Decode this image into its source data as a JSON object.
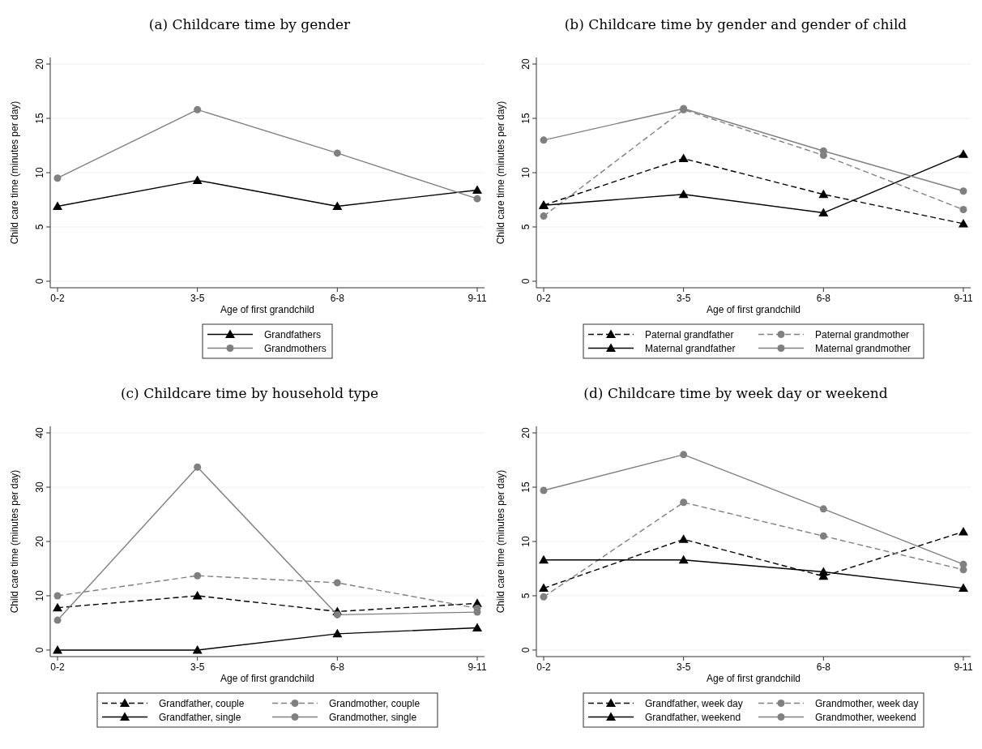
{
  "chart_data": [
    {
      "type": "line",
      "title": "(a) Childcare time by gender",
      "xlabel": "Age of first grandchild",
      "ylabel": "Child care time (minutes per day)",
      "categories": [
        "0-2",
        "3-5",
        "6-8",
        "9-11"
      ],
      "ylim": [
        -0.6,
        20.6
      ],
      "yticks": [
        0,
        5,
        10,
        15,
        20
      ],
      "grid": "y",
      "legend": "bottom",
      "series": [
        {
          "name": "Grandfathers",
          "color": "#000000",
          "marker": "triangle",
          "line_style": "solid",
          "values": [
            6.9,
            9.3,
            6.9,
            8.4
          ]
        },
        {
          "name": "Grandmothers",
          "color": "#808080",
          "marker": "circle",
          "line_style": "solid",
          "values": [
            9.5,
            15.8,
            11.8,
            7.6
          ]
        }
      ]
    },
    {
      "type": "line",
      "title": "(b) Childcare time by gender and gender of child",
      "xlabel": "Age of first grandchild",
      "ylabel": "Child care time (minutes per day)",
      "categories": [
        "0-2",
        "3-5",
        "6-8",
        "9-11"
      ],
      "ylim": [
        -0.6,
        20.6
      ],
      "yticks": [
        0,
        5,
        10,
        15,
        20
      ],
      "grid": "y",
      "legend": "bottom",
      "series": [
        {
          "name": "Paternal grandfather",
          "color": "#000000",
          "marker": "triangle",
          "line_style": "dashed",
          "values": [
            7.0,
            11.3,
            8.0,
            5.3
          ]
        },
        {
          "name": "Paternal grandmother",
          "color": "#808080",
          "marker": "circle",
          "line_style": "dashed",
          "values": [
            6.0,
            15.8,
            11.6,
            6.6
          ]
        },
        {
          "name": "Maternal grandfather",
          "color": "#000000",
          "marker": "triangle",
          "line_style": "solid",
          "values": [
            7.0,
            8.0,
            6.3,
            11.7
          ]
        },
        {
          "name": "Maternal grandmother",
          "color": "#808080",
          "marker": "circle",
          "line_style": "solid",
          "values": [
            13.0,
            15.9,
            12.0,
            8.3
          ]
        }
      ]
    },
    {
      "type": "line",
      "title": "(c) Childcare time by household type",
      "xlabel": "Age of first grandchild",
      "ylabel": "Child care time (minutes per day)",
      "categories": [
        "0-2",
        "3-5",
        "6-8",
        "9-11"
      ],
      "ylim": [
        -1.2,
        41.2
      ],
      "yticks": [
        0,
        10,
        20,
        30,
        40
      ],
      "grid": "y",
      "legend": "bottom",
      "series": [
        {
          "name": "Grandfather, couple",
          "color": "#000000",
          "marker": "triangle",
          "line_style": "dashed",
          "values": [
            7.8,
            10.0,
            7.1,
            8.6
          ]
        },
        {
          "name": "Grandmother, couple",
          "color": "#808080",
          "marker": "circle",
          "line_style": "dashed",
          "values": [
            10.0,
            13.7,
            12.4,
            7.7
          ]
        },
        {
          "name": "Grandfather, single",
          "color": "#000000",
          "marker": "triangle",
          "line_style": "solid",
          "values": [
            0,
            0,
            3.0,
            4.1
          ]
        },
        {
          "name": "Grandmother, single",
          "color": "#808080",
          "marker": "circle",
          "line_style": "solid",
          "values": [
            5.5,
            33.7,
            6.5,
            7.0
          ]
        }
      ]
    },
    {
      "type": "line",
      "title": "(d) Childcare time by week day or weekend",
      "xlabel": "Age of first grandchild",
      "ylabel": "Child care time (minutes per day)",
      "categories": [
        "0-2",
        "3-5",
        "6-8",
        "9-11"
      ],
      "ylim": [
        -0.6,
        20.6
      ],
      "yticks": [
        0,
        5,
        10,
        15,
        20
      ],
      "grid": "y",
      "legend": "bottom",
      "series": [
        {
          "name": "Grandfather, week day",
          "color": "#000000",
          "marker": "triangle",
          "line_style": "dashed",
          "values": [
            5.7,
            10.2,
            6.8,
            10.9
          ]
        },
        {
          "name": "Grandmother, week day",
          "color": "#808080",
          "marker": "circle",
          "line_style": "dashed",
          "values": [
            4.9,
            13.6,
            10.5,
            7.4
          ]
        },
        {
          "name": "Grandfather, weekend",
          "color": "#000000",
          "marker": "triangle",
          "line_style": "solid",
          "values": [
            8.3,
            8.3,
            7.2,
            5.7
          ]
        },
        {
          "name": "Grandmother, weekend",
          "color": "#808080",
          "marker": "circle",
          "line_style": "solid",
          "values": [
            14.7,
            18.0,
            13.0,
            7.9
          ]
        }
      ]
    }
  ]
}
